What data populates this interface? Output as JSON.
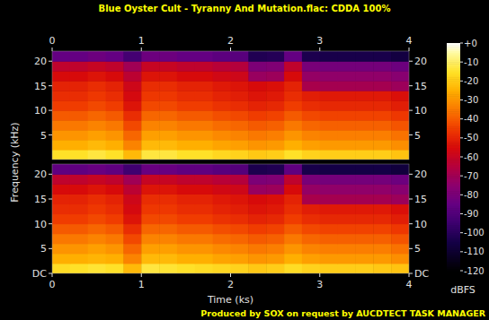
{
  "chart_data": {
    "type": "heatmap",
    "title": "Blue Oyster Cult - Tyranny And Mutation.flac: CDDA 100%",
    "x_label": "Time (ks)",
    "y_label": "Frequency (kHz)",
    "footer": "Produced by SOX on request by AUCDTECT TASK MANAGER",
    "xlim": [
      0,
      4
    ],
    "xticks": [
      0,
      1,
      2,
      3,
      4
    ],
    "ylim": [
      0,
      22.05
    ],
    "panel_yticks": [
      [
        5,
        10,
        15,
        20
      ],
      [
        {
          "value": 0,
          "label": "DC"
        },
        5,
        10,
        15,
        20
      ]
    ],
    "x_bins": [
      0,
      0.2,
      0.4,
      0.6,
      0.8,
      1.0,
      1.2,
      1.4,
      1.6,
      1.8,
      2.0,
      2.2,
      2.4,
      2.6,
      2.8,
      3.0,
      3.2,
      3.4,
      3.6,
      3.8,
      4.0
    ],
    "y_bins": [
      0,
      2,
      4,
      6,
      8,
      10,
      12,
      14,
      16,
      18,
      20,
      22.05
    ],
    "values": [
      [
        [
          -15,
          -15,
          -13,
          -15,
          -23,
          -13,
          -13,
          -15,
          -15,
          -17,
          -18,
          -20,
          -19,
          -15,
          -18,
          -19,
          -19,
          -19,
          -19,
          -21
        ],
        [
          -25,
          -25,
          -23,
          -25,
          -33,
          -23,
          -23,
          -25,
          -25,
          -27,
          -28,
          -30,
          -29,
          -25,
          -28,
          -29,
          -29,
          -29,
          -29,
          -31
        ],
        [
          -30,
          -30,
          -28,
          -30,
          -38,
          -28,
          -28,
          -30,
          -30,
          -32,
          -33,
          -35,
          -34,
          -30,
          -33,
          -34,
          -34,
          -34,
          -34,
          -36
        ],
        [
          -35,
          -35,
          -33,
          -35,
          -43,
          -33,
          -33,
          -35,
          -35,
          -37,
          -38,
          -40,
          -39,
          -35,
          -38,
          -39,
          -39,
          -39,
          -39,
          -41
        ],
        [
          -40,
          -40,
          -38,
          -40,
          -48,
          -38,
          -38,
          -40,
          -40,
          -42,
          -43,
          -45,
          -44,
          -40,
          -43,
          -44,
          -44,
          -44,
          -44,
          -46
        ],
        [
          -45,
          -45,
          -43,
          -45,
          -53,
          -43,
          -43,
          -45,
          -45,
          -47,
          -48,
          -50,
          -49,
          -45,
          -48,
          -49,
          -49,
          -49,
          -49,
          -51
        ],
        [
          -48,
          -48,
          -46,
          -48,
          -56,
          -46,
          -46,
          -48,
          -48,
          -50,
          -51,
          -53,
          -52,
          -48,
          -51,
          -52,
          -52,
          -52,
          -52,
          -54
        ],
        [
          -50,
          -50,
          -48,
          -50,
          -58,
          -48,
          -48,
          -50,
          -50,
          -52,
          -53,
          -55,
          -54,
          -50,
          -68,
          -69,
          -69,
          -69,
          -69,
          -71
        ],
        [
          -55,
          -55,
          -53,
          -55,
          -63,
          -53,
          -53,
          -55,
          -55,
          -57,
          -58,
          -72,
          -71,
          -55,
          -73,
          -74,
          -74,
          -74,
          -74,
          -76
        ],
        [
          -62,
          -62,
          -60,
          -62,
          -70,
          -60,
          -60,
          -62,
          -62,
          -64,
          -65,
          -79,
          -78,
          -62,
          -80,
          -81,
          -81,
          -81,
          -81,
          -83
        ],
        [
          -85,
          -85,
          -83,
          -85,
          -93,
          -83,
          -83,
          -85,
          -85,
          -87,
          -88,
          -102,
          -101,
          -85,
          -103,
          -104,
          -104,
          -104,
          -104,
          -106
        ]
      ],
      [
        [
          -16,
          -15,
          -14,
          -15,
          -23,
          -13,
          -14,
          -15,
          -16,
          -17,
          -18,
          -20,
          -19,
          -16,
          -18,
          -19,
          -19,
          -19,
          -20,
          -21
        ],
        [
          -25,
          -25,
          -24,
          -25,
          -33,
          -23,
          -23,
          -25,
          -25,
          -27,
          -28,
          -30,
          -29,
          -25,
          -28,
          -29,
          -29,
          -29,
          -29,
          -31
        ],
        [
          -30,
          -30,
          -28,
          -30,
          -38,
          -28,
          -28,
          -30,
          -30,
          -32,
          -33,
          -35,
          -34,
          -30,
          -33,
          -34,
          -34,
          -34,
          -34,
          -36
        ],
        [
          -35,
          -35,
          -33,
          -35,
          -43,
          -33,
          -33,
          -35,
          -35,
          -37,
          -38,
          -40,
          -39,
          -35,
          -38,
          -39,
          -39,
          -39,
          -39,
          -41
        ],
        [
          -40,
          -40,
          -38,
          -40,
          -48,
          -38,
          -38,
          -40,
          -40,
          -42,
          -43,
          -45,
          -44,
          -40,
          -43,
          -44,
          -44,
          -44,
          -44,
          -46
        ],
        [
          -45,
          -45,
          -43,
          -45,
          -53,
          -43,
          -43,
          -45,
          -45,
          -47,
          -48,
          -50,
          -49,
          -45,
          -48,
          -49,
          -49,
          -49,
          -49,
          -51
        ],
        [
          -48,
          -48,
          -46,
          -48,
          -56,
          -46,
          -46,
          -48,
          -48,
          -50,
          -51,
          -53,
          -52,
          -48,
          -51,
          -52,
          -52,
          -52,
          -52,
          -54
        ],
        [
          -50,
          -50,
          -48,
          -50,
          -58,
          -48,
          -48,
          -50,
          -50,
          -52,
          -53,
          -55,
          -54,
          -50,
          -68,
          -69,
          -69,
          -69,
          -69,
          -71
        ],
        [
          -55,
          -55,
          -53,
          -55,
          -63,
          -53,
          -53,
          -55,
          -55,
          -57,
          -58,
          -72,
          -71,
          -55,
          -73,
          -74,
          -74,
          -74,
          -74,
          -76
        ],
        [
          -62,
          -62,
          -60,
          -62,
          -70,
          -60,
          -60,
          -62,
          -62,
          -64,
          -65,
          -79,
          -78,
          -62,
          -80,
          -81,
          -81,
          -81,
          -81,
          -83
        ],
        [
          -86,
          -86,
          -84,
          -86,
          -94,
          -84,
          -84,
          -86,
          -86,
          -88,
          -89,
          -103,
          -102,
          -86,
          -104,
          -105,
          -105,
          -105,
          -105,
          -107
        ]
      ]
    ],
    "colorbar": {
      "range": [
        -120,
        0
      ],
      "label": "dBFS",
      "ticks": [
        {
          "value": 0,
          "label": "+0"
        },
        -10,
        -20,
        -30,
        -40,
        -50,
        -60,
        -70,
        -80,
        -90,
        -100,
        -110,
        -120
      ]
    }
  }
}
